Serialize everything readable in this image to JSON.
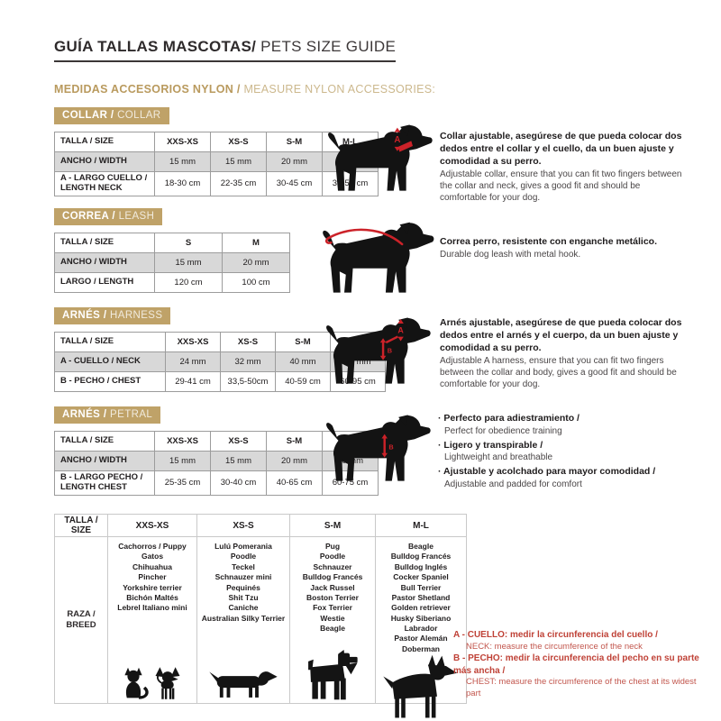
{
  "header": {
    "title_es": "GUÍA TALLAS MASCOTAS/",
    "title_en": " PETS SIZE GUIDE",
    "subtitle_es": "MEDIDAS ACCESORIOS NYLON /",
    "subtitle_en": " MEASURE NYLON ACCESSORIES:"
  },
  "colors": {
    "gold": "#bfa268",
    "red_accent": "#cc2229",
    "note_red": "#bf4136",
    "row_gray": "#d8d8d8",
    "silhouette_black": "#141414"
  },
  "sections": [
    {
      "badge_es": "COLLAR /",
      "badge_en": " COLLAR",
      "table": {
        "header": [
          "TALLA / SIZE",
          "XXS-XS",
          "XS-S",
          "S-M",
          "M-L"
        ],
        "rows": [
          {
            "label": "ANCHO / WIDTH",
            "values": [
              "15 mm",
              "15 mm",
              "20 mm",
              "20 mm"
            ]
          },
          {
            "label": "A - LARGO CUELLO / LENGTH NECK",
            "values": [
              "18-30 cm",
              "22-35 cm",
              "30-45 cm",
              "35-55 cm"
            ]
          }
        ]
      },
      "desc_es": "Collar ajustable, asegúrese de que pueda colocar dos dedos entre el collar y el cuello, da un buen ajuste y comodidad a su perro.",
      "desc_en": "Adjustable collar, ensure that you can fit two fingers between the collar and neck, gives a good fit and should be comfortable for your dog.",
      "marker_a": "A"
    },
    {
      "badge_es": "CORREA /",
      "badge_en": " LEASH",
      "table": {
        "header": [
          "TALLA / SIZE",
          "S",
          "M"
        ],
        "rows": [
          {
            "label": "ANCHO / WIDTH",
            "values": [
              "15 mm",
              "20 mm"
            ]
          },
          {
            "label": "LARGO / LENGTH",
            "values": [
              "120 cm",
              "100 cm"
            ]
          }
        ]
      },
      "desc_es": "Correa perro, resistente con enganche metálico.",
      "desc_en": "Durable dog leash with metal hook."
    },
    {
      "badge_es": "ARNÉS /",
      "badge_en": " HARNESS",
      "table": {
        "header": [
          "TALLA / SIZE",
          "XXS-XS",
          "XS-S",
          "S-M",
          "M-L"
        ],
        "rows": [
          {
            "label": "A - CUELLO / NECK",
            "values": [
              "24 mm",
              "32 mm",
              "40 mm",
              "48 mm"
            ]
          },
          {
            "label": "B - PECHO / CHEST",
            "values": [
              "29-41 cm",
              "33,5-50cm",
              "40-59 cm",
              "60-95 cm"
            ]
          }
        ]
      },
      "desc_es": "Arnés ajustable, asegúrese de que pueda colocar dos dedos entre el arnés y el cuerpo, da un buen ajuste y comodidad a su perro.",
      "desc_en": "Adjustable A harness, ensure that you can fit two fingers between the collar and body, gives a good fit and should be comfortable for your dog.",
      "marker_a": "A",
      "marker_b": "B"
    },
    {
      "badge_es": "ARNÉS /",
      "badge_en": " PETRAL",
      "table": {
        "header": [
          "TALLA / SIZE",
          "XXS-XS",
          "XS-S",
          "S-M",
          "M-L"
        ],
        "rows": [
          {
            "label": "ANCHO / WIDTH",
            "values": [
              "15 mm",
              "15 mm",
              "20 mm",
              "20 mm"
            ]
          },
          {
            "label": "B - LARGO PECHO / LENGTH CHEST",
            "values": [
              "25-35 cm",
              "30-40 cm",
              "40-65 cm",
              "60-75 cm"
            ]
          }
        ]
      },
      "bullets": [
        {
          "es": "Perfecto para adiestramiento /",
          "en": "Perfect for obedience training"
        },
        {
          "es": "Ligero y transpirable /",
          "en": "Lightweight and breathable"
        },
        {
          "es": "Ajustable y acolchado para mayor comodidad /",
          "en": "Adjustable and padded for comfort"
        }
      ],
      "marker_b": "B"
    }
  ],
  "breed_table": {
    "header": [
      "TALLA / SIZE",
      "XXS-XS",
      "XS-S",
      "S-M",
      "M-L"
    ],
    "row_label": "RAZA / BREED",
    "columns": [
      {
        "breeds": [
          "Cachorros / Puppy",
          "Gatos",
          "Chihuahua",
          "Pincher",
          "Yorkshire terrier",
          "Bichón Maltés",
          "Lebrel Italiano mini"
        ]
      },
      {
        "breeds": [
          "Lulú Pomerania",
          "Poodle",
          "Teckel",
          "Schnauzer mini",
          "Pequinés",
          "Shit Tzu",
          "Caniche",
          "Australian Silky Terrier"
        ]
      },
      {
        "breeds": [
          "Pug",
          "Poodle",
          "Schnauzer",
          "Bulldog Francés",
          "Jack Russel",
          "Boston Terrier",
          "Fox Terrier",
          "Westie",
          "Beagle"
        ]
      },
      {
        "breeds": [
          "Beagle",
          "Bulldog Francés",
          "Bulldog Inglés",
          "Cocker Spaniel",
          "Bull Terrier",
          "Pastor Shetland",
          "Golden retriever",
          "Husky Siberiano",
          "Labrador",
          "Pastor Alemán",
          "Doberman"
        ]
      }
    ]
  },
  "notes": [
    {
      "es": "A - CUELLO: medir la circunferencia del cuello /",
      "en": "NECK: measure the circumference of the neck"
    },
    {
      "es": "B - PECHO: medir la circunferencia del pecho en su parte más ancha /",
      "en": "CHEST: measure the circumference of the chest at its widest part"
    }
  ]
}
